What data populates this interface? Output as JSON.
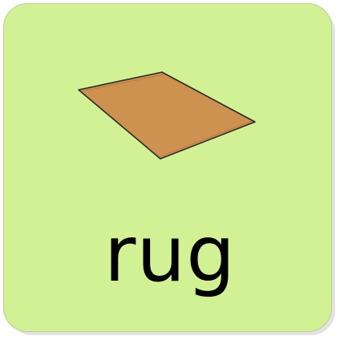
{
  "card": {
    "word": "rug",
    "background_color": "#d2f195",
    "image_icon": "rug-icon",
    "rug_color": "#cd9150"
  }
}
